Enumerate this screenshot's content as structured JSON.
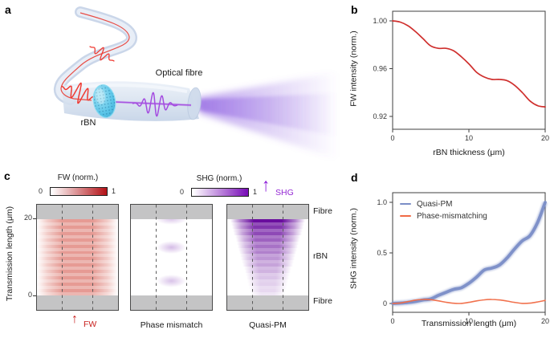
{
  "figure": {
    "background": "#ffffff"
  },
  "colors": {
    "fw_red": "#cc2422",
    "quasi_pm_blue": "#7b8ec7",
    "phase_mismatch_orange": "#f06a45",
    "shg_purple": "#8a18d8",
    "fibre_gray": "#c4c4c5",
    "fw_cbar_max": "#b5161b",
    "shg_cbar_max": "#7a0fb8"
  },
  "panels": {
    "a": {
      "label": "a",
      "fibre_label": "Optical fibre",
      "rbn_label": "rBN"
    },
    "b": {
      "label": "b"
    },
    "c": {
      "label": "c",
      "ylabel": "Transmission length (μm)",
      "fw_colorbar": {
        "title": "FW (norm.)",
        "min": "0",
        "max": "1",
        "color_max": "#b5161b"
      },
      "shg_colorbar": {
        "title": "SHG (norm.)",
        "min": "0",
        "max": "1",
        "color_max": "#7a0fb8"
      },
      "shg_arrow_label": "SHG",
      "fw_arrow_label": "FW",
      "captions": {
        "middle": "Phase mismatch",
        "right": "Quasi-PM"
      },
      "right_labels": {
        "top": "Fibre",
        "middle": "rBN",
        "bottom": "Fibre"
      }
    },
    "d": {
      "label": "d",
      "legend": [
        {
          "label": "Quasi-PM",
          "color": "#7b8ec7"
        },
        {
          "label": "Phase-mismatching",
          "color": "#f06a45"
        }
      ]
    }
  },
  "chart_data": [
    {
      "id": "b",
      "type": "line",
      "xlabel": "rBN thickness (μm)",
      "ylabel": "FW intensity (norm.)",
      "x": [
        0,
        1,
        2,
        3,
        4,
        5,
        6,
        7,
        8,
        9,
        10,
        11,
        12,
        13,
        14,
        15,
        16,
        17,
        18,
        19,
        20
      ],
      "series": [
        {
          "name": "FW intensity",
          "color": "#cc2422",
          "width": 1.7,
          "values": [
            1.0,
            0.999,
            0.996,
            0.991,
            0.985,
            0.979,
            0.977,
            0.977,
            0.975,
            0.97,
            0.964,
            0.957,
            0.953,
            0.951,
            0.951,
            0.95,
            0.946,
            0.94,
            0.933,
            0.929,
            0.928
          ]
        }
      ],
      "xticks": [
        0,
        10,
        20
      ],
      "xtick_labels": [
        "0",
        "10",
        "20"
      ],
      "yticks": [
        0.92,
        0.96,
        1.0
      ],
      "ytick_labels": [
        "0.92",
        "0.96",
        "1.00"
      ],
      "xlim": [
        0,
        20
      ],
      "ylim": [
        0.909,
        1.008
      ],
      "grid": false
    },
    {
      "id": "d",
      "type": "line",
      "xlabel": "Transmission length (μm)",
      "ylabel": "SHG intensity (norm.)",
      "x": [
        0,
        1,
        2,
        3,
        4,
        5,
        6,
        7,
        8,
        9,
        10,
        11,
        12,
        13,
        14,
        15,
        16,
        17,
        18,
        19,
        20
      ],
      "series": [
        {
          "name": "Quasi-PM",
          "color": "#7b8ec7",
          "width": 3.8,
          "band": true,
          "values": [
            0,
            0.004,
            0.01,
            0.02,
            0.035,
            0.045,
            0.08,
            0.11,
            0.14,
            0.155,
            0.2,
            0.26,
            0.33,
            0.35,
            0.38,
            0.45,
            0.54,
            0.62,
            0.67,
            0.8,
            1.0
          ]
        },
        {
          "name": "Phase-mismatching",
          "color": "#f06a45",
          "width": 1.6,
          "band": false,
          "values": [
            0,
            0.005,
            0.018,
            0.033,
            0.04,
            0.037,
            0.026,
            0.012,
            0.002,
            0.001,
            0.011,
            0.025,
            0.036,
            0.04,
            0.035,
            0.024,
            0.01,
            0.001,
            0.003,
            0.015,
            0.03
          ]
        }
      ],
      "xticks": [
        0,
        10,
        20
      ],
      "xtick_labels": [
        "0",
        "10",
        "20"
      ],
      "yticks": [
        0,
        0.5,
        1.0
      ],
      "ytick_labels": [
        "0",
        "0.5",
        "1.0"
      ],
      "xlim": [
        0,
        20
      ],
      "ylim": [
        -0.09,
        1.095
      ],
      "grid": false,
      "legend_position": "upper-left"
    },
    {
      "id": "c",
      "type": "heatmap",
      "ylabel": "Transmission length (μm)",
      "yticks": [
        0,
        20
      ],
      "ytick_labels": [
        "0",
        "20"
      ],
      "regions": [
        "Fibre",
        "rBN",
        "Fibre"
      ],
      "maps": [
        {
          "caption": "FW",
          "colorbar_title": "FW (norm.)",
          "colorbar_range": [
            0,
            1
          ],
          "intensity_uniform": 0.6
        },
        {
          "caption": "Phase mismatch",
          "colorbar_title": "SHG (norm.)",
          "blob_centers_um": [
            4,
            12.5,
            20
          ],
          "peak_intensity": 0.12
        },
        {
          "caption": "Quasi-PM",
          "colorbar_title": "SHG (norm.)",
          "length_um": [
            0,
            1,
            2,
            3,
            4,
            5,
            6,
            7,
            8,
            9,
            10,
            11,
            12,
            13,
            14,
            15,
            16,
            17,
            18,
            19,
            20
          ],
          "intensity": [
            0,
            0.004,
            0.01,
            0.02,
            0.035,
            0.045,
            0.08,
            0.11,
            0.14,
            0.155,
            0.2,
            0.26,
            0.33,
            0.35,
            0.38,
            0.45,
            0.54,
            0.62,
            0.67,
            0.8,
            1.0
          ]
        }
      ]
    }
  ]
}
